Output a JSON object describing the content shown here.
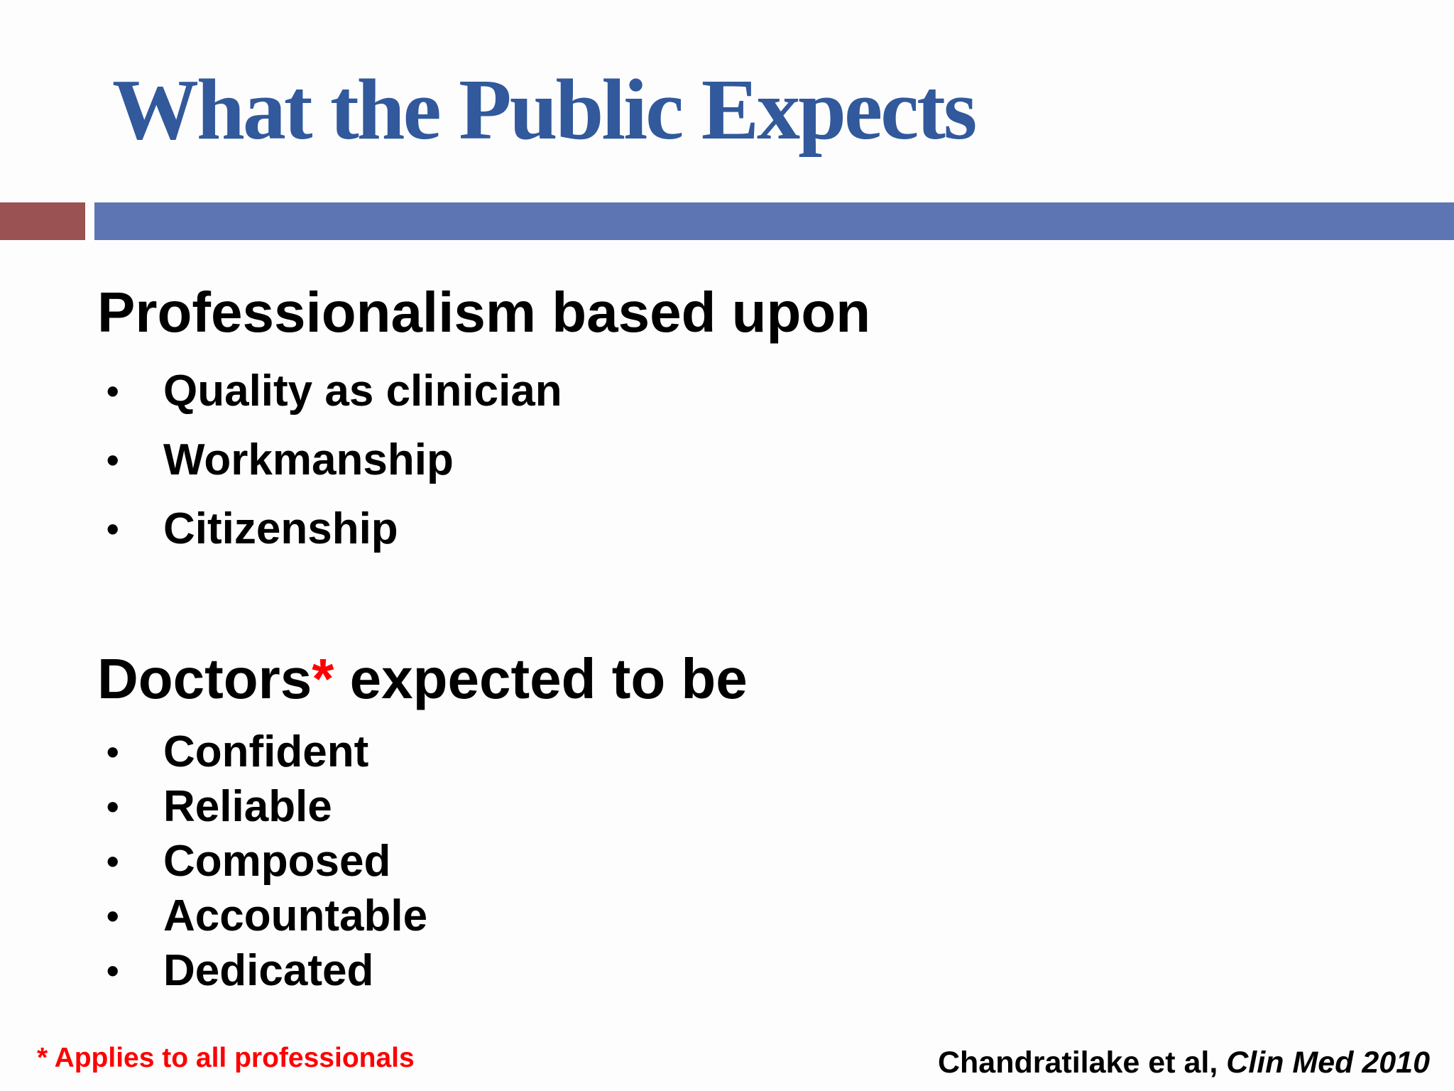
{
  "title": "What the Public Expects",
  "bullet_char": "•",
  "colors": {
    "title_blue": "#31599B",
    "bar_blue": "#5D75B3",
    "bar_red": "#9A5253",
    "accent_red": "#FF0000",
    "body_text": "#000000"
  },
  "sections": [
    {
      "heading": "Professionalism based upon",
      "items": [
        "Quality as clinician",
        "Workmanship",
        "Citizenship"
      ]
    },
    {
      "heading_name": "Doctors",
      "heading_mark": "*",
      "heading_rest": " expected to be",
      "items": [
        "Confident",
        "Reliable",
        "Composed",
        "Accountable",
        "Dedicated"
      ]
    }
  ],
  "footnote": "* Applies to all professionals",
  "citation": {
    "authors": "Chandratilake et al,",
    "journal": " Clin Med 2010"
  }
}
